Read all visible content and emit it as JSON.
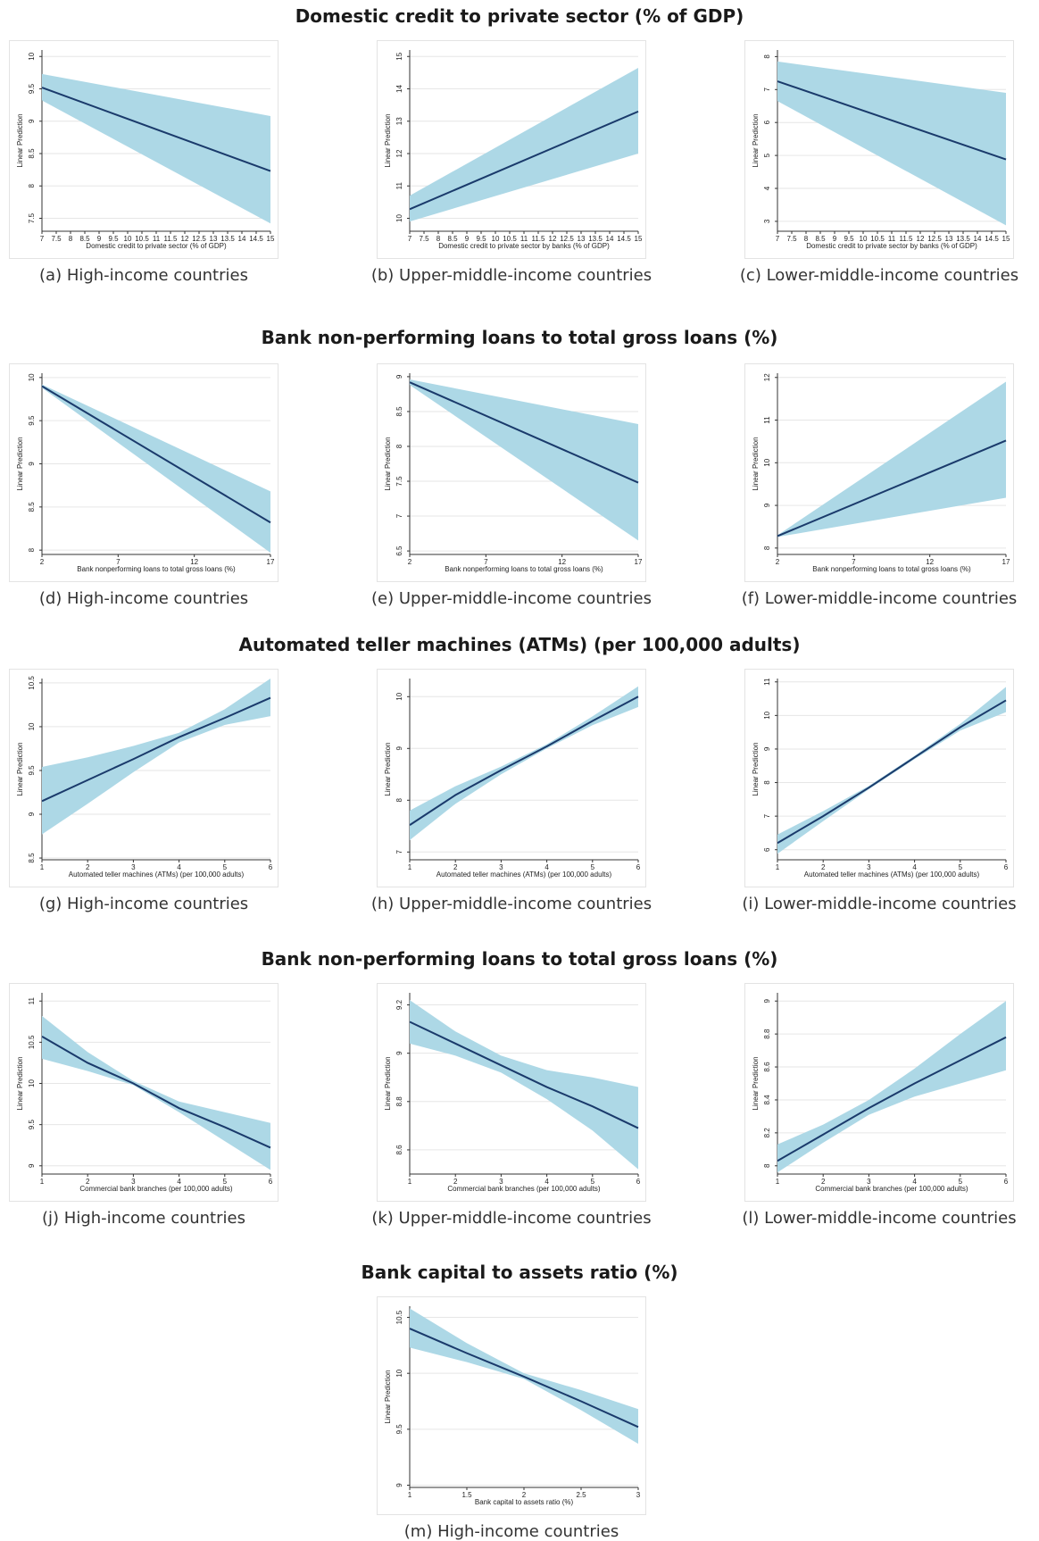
{
  "section_titles": [
    "Domestic credit to private sector (% of GDP)",
    "Bank non-performing loans to total gross loans (%)",
    "Automated teller machines (ATMs) (per 100,000 adults)",
    "Bank non-performing loans to total gross loans (%)",
    "Bank capital to assets ratio (%)"
  ],
  "colors": {
    "band": "#add8e6",
    "line": "#1a3a6b",
    "grid": "#e6e6e6",
    "axis": "#333333"
  },
  "chart_data": [
    {
      "type": "line",
      "caption": "(a) High-income countries",
      "xlabel": "Domestic credit to private sector (% of GDP)",
      "ylabel": "Linear Prediction",
      "xlim": [
        7,
        15
      ],
      "ylim": [
        7.3,
        10.1
      ],
      "xticks": [
        7,
        7.5,
        8,
        8.5,
        9,
        9.5,
        10,
        10.5,
        11,
        11.5,
        12,
        12.5,
        13,
        13.5,
        14,
        14.5,
        15
      ],
      "yticks": [
        7.5,
        8,
        8.5,
        9,
        9.5,
        10
      ],
      "series": [
        {
          "x": [
            7,
            15
          ],
          "y": [
            9.52,
            8.23
          ],
          "lower": [
            9.32,
            7.42
          ],
          "upper": [
            9.73,
            9.08
          ]
        }
      ]
    },
    {
      "type": "line",
      "caption": "(b) Upper-middle-income countries",
      "xlabel": "Domestic credit to private sector by banks (% of GDP)",
      "ylabel": "Linear Prediction",
      "xlim": [
        7,
        15
      ],
      "ylim": [
        9.6,
        15.2
      ],
      "xticks": [
        7,
        7.5,
        8,
        8.5,
        9,
        9.5,
        10,
        10.5,
        11,
        11.5,
        12,
        12.5,
        13,
        13.5,
        14,
        14.5,
        15
      ],
      "yticks": [
        10,
        11,
        12,
        13,
        14,
        15
      ],
      "series": [
        {
          "x": [
            7,
            15
          ],
          "y": [
            10.28,
            13.3
          ],
          "lower": [
            9.9,
            12.0
          ],
          "upper": [
            10.7,
            14.65
          ]
        }
      ]
    },
    {
      "type": "line",
      "caption": "(c) Lower-middle-income countries",
      "xlabel": "Domestic credit to private sector by banks (% of GDP)",
      "ylabel": "Linear Prediction",
      "xlim": [
        7,
        15
      ],
      "ylim": [
        2.7,
        8.2
      ],
      "xticks": [
        7,
        7.5,
        8,
        8.5,
        9,
        9.5,
        10,
        10.5,
        11,
        11.5,
        12,
        12.5,
        13,
        13.5,
        14,
        14.5,
        15
      ],
      "yticks": [
        3,
        4,
        5,
        6,
        7,
        8
      ],
      "series": [
        {
          "x": [
            7,
            15
          ],
          "y": [
            7.25,
            4.88
          ],
          "lower": [
            6.65,
            2.88
          ],
          "upper": [
            7.85,
            6.9
          ]
        }
      ]
    },
    {
      "type": "line",
      "caption": "(d) High-income countries",
      "xlabel": "Bank nonperforming loans to total gross loans (%)",
      "ylabel": "Linear Prediction",
      "xlim": [
        2,
        17
      ],
      "ylim": [
        7.95,
        10.05
      ],
      "xticks": [
        2,
        7,
        12,
        17
      ],
      "yticks": [
        8,
        8.5,
        9,
        9.5,
        10
      ],
      "series": [
        {
          "x": [
            2,
            17
          ],
          "y": [
            9.9,
            8.32
          ],
          "lower": [
            9.88,
            7.97
          ],
          "upper": [
            9.92,
            8.68
          ]
        }
      ]
    },
    {
      "type": "line",
      "caption": "(e) Upper-middle-income countries",
      "xlabel": "Bank nonperforming loans to total gross loans (%)",
      "ylabel": "Linear Prediction",
      "xlim": [
        2,
        17
      ],
      "ylim": [
        6.45,
        9.05
      ],
      "xticks": [
        2,
        7,
        12,
        17
      ],
      "yticks": [
        6.5,
        7,
        7.5,
        8,
        8.5,
        9
      ],
      "series": [
        {
          "x": [
            2,
            17
          ],
          "y": [
            8.92,
            7.48
          ],
          "lower": [
            8.88,
            6.65
          ],
          "upper": [
            8.96,
            8.32
          ]
        }
      ]
    },
    {
      "type": "line",
      "caption": "(f) Lower-middle-income countries",
      "xlabel": "Bank nonperforming loans to total gross loans (%)",
      "ylabel": "Linear Prediction",
      "xlim": [
        2,
        17
      ],
      "ylim": [
        7.85,
        12.1
      ],
      "xticks": [
        2,
        7,
        12,
        17
      ],
      "yticks": [
        8,
        9,
        10,
        11,
        12
      ],
      "series": [
        {
          "x": [
            2,
            17
          ],
          "y": [
            8.28,
            10.52
          ],
          "lower": [
            8.26,
            9.18
          ],
          "upper": [
            8.3,
            11.9
          ]
        }
      ]
    },
    {
      "type": "line",
      "caption": "(g) High-income countries",
      "xlabel": "Automated teller machines (ATMs) (per 100,000 adults)",
      "ylabel": "Linear Prediction",
      "xlim": [
        1,
        6
      ],
      "ylim": [
        8.48,
        10.55
      ],
      "xticks": [
        1,
        2,
        3,
        4,
        5,
        6
      ],
      "yticks": [
        8.5,
        9,
        9.5,
        10,
        10.5
      ],
      "series": [
        {
          "x": [
            1,
            2,
            3,
            4,
            5,
            6
          ],
          "y": [
            9.15,
            9.39,
            9.63,
            9.88,
            10.1,
            10.33
          ],
          "lower": [
            8.77,
            9.12,
            9.48,
            9.82,
            10.02,
            10.12
          ],
          "upper": [
            9.54,
            9.65,
            9.78,
            9.93,
            10.2,
            10.55
          ]
        }
      ]
    },
    {
      "type": "line",
      "caption": "(h) Upper-middle-income countries",
      "xlabel": "Automated teller machines (ATMs) (per 100,000 adults)",
      "ylabel": "Linear Prediction",
      "xlim": [
        1,
        6
      ],
      "ylim": [
        6.85,
        10.35
      ],
      "xticks": [
        1,
        2,
        3,
        4,
        5,
        6
      ],
      "yticks": [
        7,
        8,
        9,
        10
      ],
      "series": [
        {
          "x": [
            1,
            2,
            3,
            4,
            5,
            6
          ],
          "y": [
            7.52,
            8.1,
            8.58,
            9.04,
            9.53,
            10.0
          ],
          "lower": [
            7.23,
            7.93,
            8.5,
            9.0,
            9.45,
            9.8
          ],
          "upper": [
            7.8,
            8.27,
            8.65,
            9.08,
            9.62,
            10.2
          ]
        }
      ]
    },
    {
      "type": "line",
      "caption": "(i) Lower-middle-income countries",
      "xlabel": "Automated teller machines (ATMs) (per 100,000 adults)",
      "ylabel": "Linear Prediction",
      "xlim": [
        1,
        6
      ],
      "ylim": [
        5.7,
        11.1
      ],
      "xticks": [
        1,
        2,
        3,
        4,
        5,
        6
      ],
      "yticks": [
        6,
        7,
        8,
        9,
        10,
        11
      ],
      "series": [
        {
          "x": [
            1,
            2,
            3,
            4,
            5,
            6
          ],
          "y": [
            6.2,
            7.0,
            7.85,
            8.75,
            9.65,
            10.45
          ],
          "lower": [
            5.88,
            6.85,
            7.8,
            8.7,
            9.55,
            10.1
          ],
          "upper": [
            6.45,
            7.15,
            7.9,
            8.8,
            9.75,
            10.85
          ]
        }
      ]
    },
    {
      "type": "line",
      "caption": "(j) High-income countries",
      "xlabel": "Commercial bank branches (per 100,000 adults)",
      "ylabel": "Linear Prediction",
      "xlim": [
        1,
        6
      ],
      "ylim": [
        8.9,
        11.1
      ],
      "xticks": [
        1,
        2,
        3,
        4,
        5,
        6
      ],
      "yticks": [
        9,
        9.5,
        10,
        10.5,
        11
      ],
      "series": [
        {
          "x": [
            1,
            2,
            3,
            4,
            5,
            6
          ],
          "y": [
            10.57,
            10.25,
            10.0,
            9.7,
            9.47,
            9.22
          ],
          "lower": [
            10.3,
            10.15,
            9.98,
            9.65,
            9.3,
            8.95
          ],
          "upper": [
            10.82,
            10.38,
            10.03,
            9.78,
            9.65,
            9.52
          ]
        }
      ]
    },
    {
      "type": "line",
      "caption": "(k) Upper-middle-income countries",
      "xlabel": "Commercial bank branches (per 100,000 adults)",
      "ylabel": "Linear Prediction",
      "xlim": [
        1,
        6
      ],
      "ylim": [
        8.5,
        9.25
      ],
      "xticks": [
        1,
        2,
        3,
        4,
        5,
        6
      ],
      "yticks": [
        8.6,
        8.8,
        9,
        9.2
      ],
      "series": [
        {
          "x": [
            1,
            2,
            3,
            4,
            5,
            6
          ],
          "y": [
            9.13,
            9.04,
            8.95,
            8.86,
            8.78,
            8.69
          ],
          "lower": [
            9.04,
            8.99,
            8.92,
            8.81,
            8.68,
            8.52
          ],
          "upper": [
            9.22,
            9.09,
            8.99,
            8.93,
            8.9,
            8.86
          ]
        }
      ]
    },
    {
      "type": "line",
      "caption": "(l) Lower-middle-income countries",
      "xlabel": "Commercial bank branches (per 100,000 adults)",
      "ylabel": "Linear Prediction",
      "xlim": [
        1,
        6
      ],
      "ylim": [
        7.95,
        9.05
      ],
      "xticks": [
        1,
        2,
        3,
        4,
        5,
        6
      ],
      "yticks": [
        8,
        8.2,
        8.4,
        8.6,
        8.8,
        9
      ],
      "series": [
        {
          "x": [
            1,
            2,
            3,
            4,
            5,
            6
          ],
          "y": [
            8.03,
            8.19,
            8.35,
            8.5,
            8.64,
            8.78
          ],
          "lower": [
            7.96,
            8.14,
            8.31,
            8.42,
            8.5,
            8.58
          ],
          "upper": [
            8.13,
            8.25,
            8.4,
            8.59,
            8.8,
            9.0
          ]
        }
      ]
    },
    {
      "type": "line",
      "caption": "(m) High-income countries",
      "xlabel": "Bank capital to assets ratio (%)",
      "ylabel": "Linear Prediction",
      "xlim": [
        1,
        3
      ],
      "ylim": [
        8.98,
        10.6
      ],
      "xticks": [
        1,
        1.5,
        2,
        2.5,
        3
      ],
      "yticks": [
        9,
        9.5,
        10,
        10.5
      ],
      "series": [
        {
          "x": [
            1,
            1.5,
            2,
            2.5,
            3
          ],
          "y": [
            10.4,
            10.18,
            9.97,
            9.75,
            9.52
          ],
          "lower": [
            10.23,
            10.1,
            9.95,
            9.67,
            9.37
          ],
          "upper": [
            10.58,
            10.27,
            10.0,
            9.85,
            9.68
          ]
        }
      ]
    }
  ]
}
